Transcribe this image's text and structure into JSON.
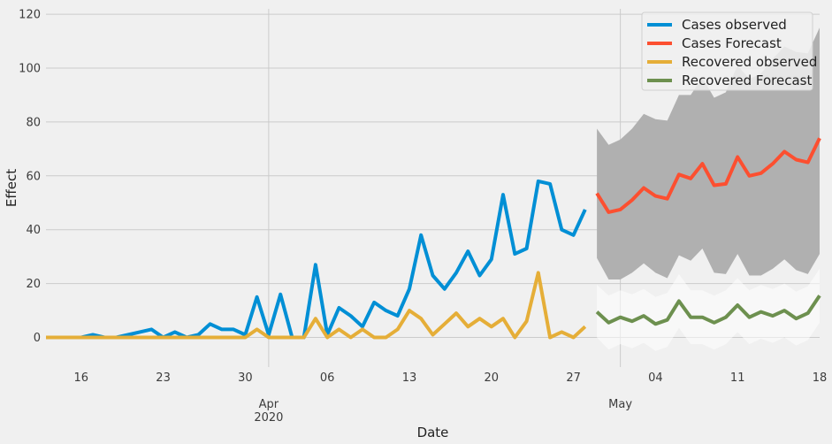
{
  "chart_data": {
    "type": "line",
    "title": "",
    "xlabel": "Date",
    "ylabel": "Effect",
    "x_range": [
      "2020-03-13",
      "2020-05-18"
    ],
    "ylim": [
      -11,
      122
    ],
    "y_ticks": [
      0,
      20,
      40,
      60,
      80,
      100,
      120
    ],
    "x_ticks": [
      {
        "date": "2020-03-16",
        "label": "16"
      },
      {
        "date": "2020-03-23",
        "label": "23"
      },
      {
        "date": "2020-03-30",
        "label": "30"
      },
      {
        "date": "2020-04-06",
        "label": "06"
      },
      {
        "date": "2020-04-13",
        "label": "13"
      },
      {
        "date": "2020-04-20",
        "label": "20"
      },
      {
        "date": "2020-04-27",
        "label": "27"
      },
      {
        "date": "2020-05-04",
        "label": "04"
      },
      {
        "date": "2020-05-11",
        "label": "11"
      },
      {
        "date": "2020-05-18",
        "label": "18"
      }
    ],
    "month_labels": [
      {
        "date": "2020-04-01",
        "lines": [
          "Apr",
          "2020"
        ]
      },
      {
        "date": "2020-05-01",
        "lines": [
          "May"
        ]
      }
    ],
    "grid": true,
    "legend_position": "top-right",
    "colors": {
      "background": "#f0f0f0",
      "grid": "#cbcbcb",
      "band_outer": "#ffffff",
      "band_inner": "#b0b0b0"
    },
    "series": [
      {
        "name": "Cases observed",
        "color": "#008fd5",
        "x": [
          "2020-03-13",
          "2020-03-14",
          "2020-03-15",
          "2020-03-16",
          "2020-03-17",
          "2020-03-18",
          "2020-03-19",
          "2020-03-20",
          "2020-03-21",
          "2020-03-22",
          "2020-03-23",
          "2020-03-24",
          "2020-03-25",
          "2020-03-26",
          "2020-03-27",
          "2020-03-28",
          "2020-03-29",
          "2020-03-30",
          "2020-03-31",
          "2020-04-01",
          "2020-04-02",
          "2020-04-03",
          "2020-04-04",
          "2020-04-05",
          "2020-04-06",
          "2020-04-07",
          "2020-04-08",
          "2020-04-09",
          "2020-04-10",
          "2020-04-11",
          "2020-04-12",
          "2020-04-13",
          "2020-04-14",
          "2020-04-15",
          "2020-04-16",
          "2020-04-17",
          "2020-04-18",
          "2020-04-19",
          "2020-04-20",
          "2020-04-21",
          "2020-04-22",
          "2020-04-23",
          "2020-04-24",
          "2020-04-25",
          "2020-04-26",
          "2020-04-27",
          "2020-04-28"
        ],
        "values": [
          0,
          0,
          0,
          0,
          1,
          0,
          0,
          1,
          2,
          3,
          0,
          2,
          0,
          1,
          5,
          3,
          3,
          1,
          15,
          1,
          16,
          0,
          0,
          27,
          1,
          11,
          8,
          4,
          13,
          10,
          8,
          18,
          38,
          23,
          18,
          24,
          32,
          23,
          29,
          53,
          31,
          33,
          58,
          57,
          40,
          38,
          47.5
        ]
      },
      {
        "name": "Cases Forecast",
        "color": "#fc4f30",
        "x": [
          "2020-04-29",
          "2020-04-30",
          "2020-05-01",
          "2020-05-02",
          "2020-05-03",
          "2020-05-04",
          "2020-05-05",
          "2020-05-06",
          "2020-05-07",
          "2020-05-08",
          "2020-05-09",
          "2020-05-10",
          "2020-05-11",
          "2020-05-12",
          "2020-05-13",
          "2020-05-14",
          "2020-05-15",
          "2020-05-16",
          "2020-05-17",
          "2020-05-18"
        ],
        "values": [
          53.5,
          46.5,
          47.5,
          51,
          55.5,
          52.5,
          51.5,
          60.5,
          59,
          64.5,
          56.5,
          57,
          67,
          60,
          61,
          64.5,
          69,
          66,
          65,
          74
        ],
        "band_lower": [
          29.5,
          21.5,
          21.5,
          24,
          27.5,
          24,
          22,
          30.5,
          28.5,
          33,
          24,
          23.5,
          31,
          23,
          23,
          25.5,
          29,
          25,
          23.5,
          31
        ],
        "band_upper": [
          77.5,
          71.5,
          73.5,
          77.5,
          83,
          81,
          80.5,
          90,
          90,
          96.5,
          89,
          91,
          101,
          96,
          98,
          103.5,
          108,
          106,
          105.5,
          115
        ]
      },
      {
        "name": "Recovered observed",
        "color": "#e5ae38",
        "x": [
          "2020-03-13",
          "2020-03-14",
          "2020-03-15",
          "2020-03-16",
          "2020-03-17",
          "2020-03-18",
          "2020-03-19",
          "2020-03-20",
          "2020-03-21",
          "2020-03-22",
          "2020-03-23",
          "2020-03-24",
          "2020-03-25",
          "2020-03-26",
          "2020-03-27",
          "2020-03-28",
          "2020-03-29",
          "2020-03-30",
          "2020-03-31",
          "2020-04-01",
          "2020-04-02",
          "2020-04-03",
          "2020-04-04",
          "2020-04-05",
          "2020-04-06",
          "2020-04-07",
          "2020-04-08",
          "2020-04-09",
          "2020-04-10",
          "2020-04-11",
          "2020-04-12",
          "2020-04-13",
          "2020-04-14",
          "2020-04-15",
          "2020-04-16",
          "2020-04-17",
          "2020-04-18",
          "2020-04-19",
          "2020-04-20",
          "2020-04-21",
          "2020-04-22",
          "2020-04-23",
          "2020-04-24",
          "2020-04-25",
          "2020-04-26",
          "2020-04-27",
          "2020-04-28"
        ],
        "values": [
          0,
          0,
          0,
          0,
          0,
          0,
          0,
          0,
          0,
          0,
          0,
          0,
          0,
          0,
          0,
          0,
          0,
          0,
          3,
          0,
          0,
          0,
          0,
          7,
          0,
          3,
          0,
          3,
          0,
          0,
          3,
          10,
          7,
          1,
          5,
          9,
          4,
          7,
          4,
          7,
          0,
          6,
          24,
          0,
          2,
          0,
          4
        ]
      },
      {
        "name": "Recovered Forecast",
        "color": "#6d904f",
        "x": [
          "2020-04-29",
          "2020-04-30",
          "2020-05-01",
          "2020-05-02",
          "2020-05-03",
          "2020-05-04",
          "2020-05-05",
          "2020-05-06",
          "2020-05-07",
          "2020-05-08",
          "2020-05-09",
          "2020-05-10",
          "2020-05-11",
          "2020-05-12",
          "2020-05-13",
          "2020-05-14",
          "2020-05-15",
          "2020-05-16",
          "2020-05-17",
          "2020-05-18"
        ],
        "values": [
          9.5,
          5.5,
          7.5,
          6,
          8,
          5,
          6.5,
          13.5,
          7.5,
          7.5,
          5.5,
          7.5,
          12,
          7.5,
          9.5,
          8,
          10,
          7,
          9,
          15.5
        ],
        "band_lower": [
          0,
          -4.5,
          -2.5,
          -4,
          -2,
          -5,
          -3.5,
          3.5,
          -2.5,
          -2.5,
          -4.5,
          -2.5,
          2,
          -2.5,
          -0.5,
          -2,
          0,
          -3,
          -1,
          5.5
        ],
        "band_upper": [
          19.5,
          15.5,
          17.5,
          16,
          18,
          15,
          16.5,
          23.5,
          17.5,
          17.5,
          15.5,
          17.5,
          22,
          17.5,
          19.5,
          18,
          20,
          17,
          19,
          25.5
        ]
      }
    ]
  }
}
